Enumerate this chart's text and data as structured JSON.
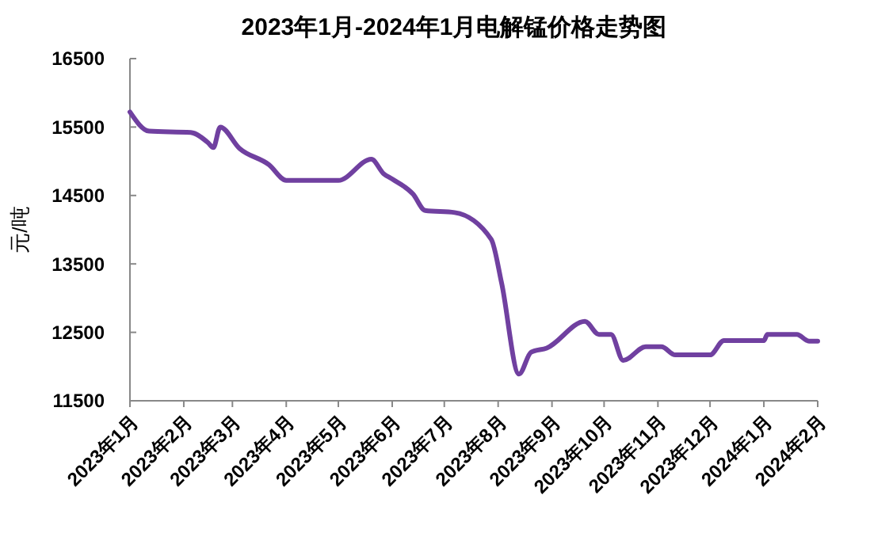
{
  "chart_data": {
    "type": "line",
    "title": "2023年1月-2024年1月电解锰价格走势图",
    "ylabel": "元/吨",
    "series": [
      {
        "color": "#7040a0",
        "x": [
          "2023-01-01",
          "2023-01-12",
          "2023-02-05",
          "2023-02-15",
          "2023-02-18",
          "2023-02-22",
          "2023-03-05",
          "2023-03-22",
          "2023-04-01",
          "2023-05-01",
          "2023-05-20",
          "2023-05-27",
          "2023-06-01",
          "2023-06-13",
          "2023-06-20",
          "2023-07-07",
          "2023-07-28",
          "2023-08-03",
          "2023-08-13",
          "2023-08-20",
          "2023-08-29",
          "2023-09-20",
          "2023-09-28",
          "2023-10-05",
          "2023-10-12",
          "2023-10-25",
          "2023-11-03",
          "2023-11-11",
          "2023-12-01",
          "2023-12-09",
          "2024-01-01",
          "2024-01-03",
          "2024-01-20",
          "2024-01-27",
          "2024-02-01"
        ],
        "values": [
          15720,
          15440,
          15420,
          15270,
          15200,
          15500,
          15190,
          14950,
          14720,
          14720,
          15030,
          14820,
          14740,
          14520,
          14280,
          14250,
          13860,
          13220,
          11890,
          12210,
          12270,
          12660,
          12470,
          12470,
          12090,
          12290,
          12290,
          12170,
          12170,
          12380,
          12380,
          12470,
          12470,
          12370,
          12370
        ]
      }
    ],
    "xlim": [
      "2023-01-01",
      "2024-02-01"
    ],
    "xticks": [
      {
        "value": "2023-01-01",
        "label": "2023年1月"
      },
      {
        "value": "2023-02-01",
        "label": "2023年2月"
      },
      {
        "value": "2023-03-01",
        "label": "2023年3月"
      },
      {
        "value": "2023-04-01",
        "label": "2023年4月"
      },
      {
        "value": "2023-05-01",
        "label": "2023年5月"
      },
      {
        "value": "2023-06-01",
        "label": "2023年6月"
      },
      {
        "value": "2023-07-01",
        "label": "2023年7月"
      },
      {
        "value": "2023-08-01",
        "label": "2023年8月"
      },
      {
        "value": "2023-09-01",
        "label": "2023年9月"
      },
      {
        "value": "2023-10-01",
        "label": "2023年10月"
      },
      {
        "value": "2023-11-01",
        "label": "2023年11月"
      },
      {
        "value": "2023-12-01",
        "label": "2023年12月"
      },
      {
        "value": "2024-01-01",
        "label": "2024年1月"
      },
      {
        "value": "2024-02-01",
        "label": "2024年2月"
      }
    ],
    "ylim": [
      11500,
      16500
    ],
    "yticks": [
      11500,
      12500,
      13500,
      14500,
      15500,
      16500
    ],
    "grid": false,
    "marker": "none",
    "line_style": "solid"
  }
}
